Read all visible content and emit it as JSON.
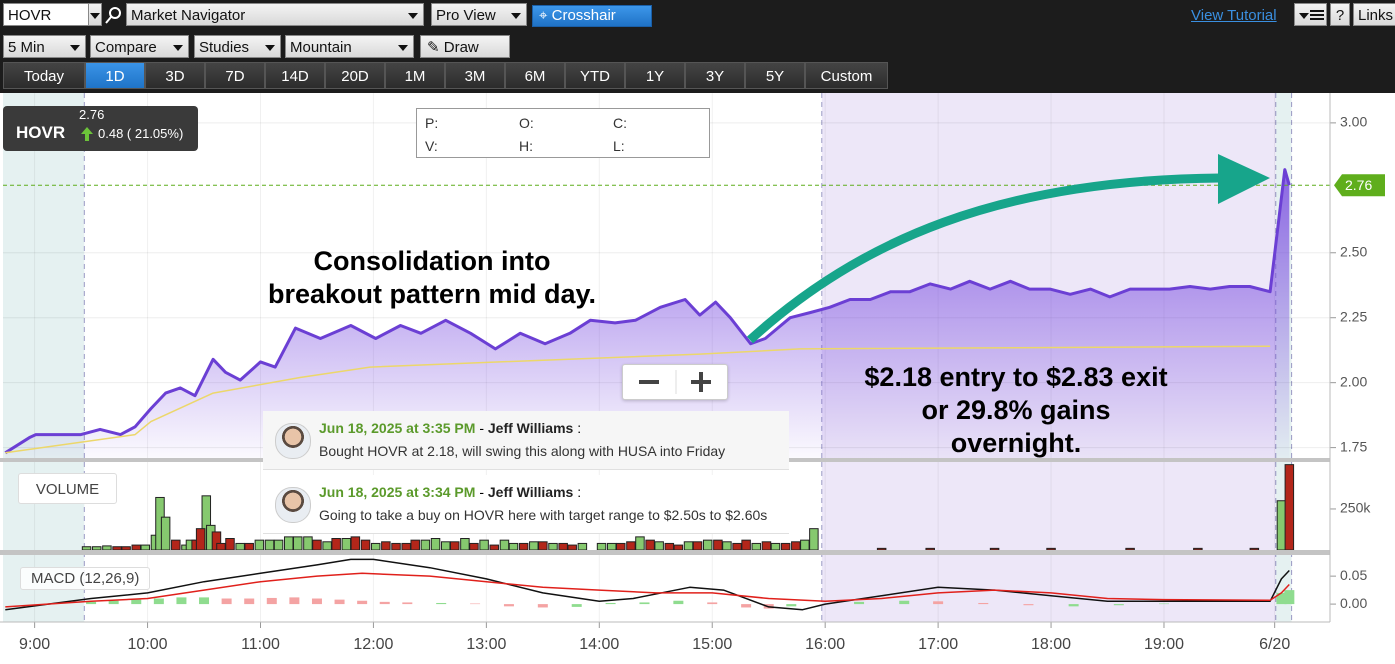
{
  "toolbar": {
    "symbol": "HOVR",
    "navigator": "Market Navigator",
    "view": "Pro View",
    "crosshair": "Crosshair",
    "tutorial": "View Tutorial",
    "links": "Links",
    "help": "?",
    "interval": "5 Min",
    "compare": "Compare",
    "studies": "Studies",
    "timezone": "Mountain",
    "draw": "Draw",
    "ranges": [
      "Today",
      "1D",
      "3D",
      "7D",
      "14D",
      "20D",
      "1M",
      "3M",
      "6M",
      "YTD",
      "1Y",
      "3Y",
      "5Y",
      "Custom"
    ],
    "selected_range": "1D"
  },
  "quote": {
    "symbol": "HOVR",
    "last": "2.76",
    "change": "0.48 ( 21.05%)"
  },
  "ohlc_labels": [
    "P:",
    "O:",
    "C:",
    "V:",
    "H:",
    "L:"
  ],
  "annotations": [
    {
      "lines": [
        "Consolidation into",
        "breakout pattern mid day."
      ]
    },
    {
      "lines": [
        "$2.18 entry to $2.83 exit",
        "or 29.8% gains",
        "overnight."
      ]
    }
  ],
  "comments": [
    {
      "date": "Jun 18, 2025 at 3:35 PM",
      "separator": "-",
      "author": "Jeff Williams",
      "colon": ":",
      "text": "Bought HOVR at 2.18, will swing this along with HUSA into Friday"
    },
    {
      "date": "Jun 18, 2025 at 3:34 PM",
      "separator": "-",
      "author": "Jeff Williams",
      "colon": ":",
      "text": "Going to take a buy on HOVR here with target range to $2.50s to $2.60s"
    }
  ],
  "panel_labels": {
    "volume": "VOLUME",
    "macd": "MACD (12,26,9)"
  },
  "chart_data": [
    {
      "type": "area",
      "xlim": [
        8.72,
        20.47
      ],
      "ylim": [
        1.71,
        3.115
      ],
      "grid": true,
      "yticks": [
        {
          "value": 1.75,
          "label": "1.75"
        },
        {
          "value": 2,
          "label": "2.00"
        },
        {
          "value": 2.25,
          "label": "2.25"
        },
        {
          "value": 2.5,
          "label": "2.50"
        },
        {
          "value": 3,
          "label": "3.00"
        }
      ],
      "reference_line": 2.76,
      "reference_color": "#5fae1c",
      "shaded": [
        {
          "xlim": [
            8.72,
            9.44
          ],
          "color": "#e5f1f1"
        },
        {
          "xlim": [
            15.97,
            19.99
          ],
          "color": "#ede7f8"
        },
        {
          "xlim": [
            19.99,
            20.13
          ],
          "color": "#e5f1f1"
        }
      ],
      "series": [
        {
          "color": "#6b3fd4",
          "area": true,
          "x": [
            8.74,
            8.96,
            9.01,
            9.41,
            9.58,
            9.76,
            9.89,
            10.03,
            10.16,
            10.29,
            10.42,
            10.58,
            10.69,
            10.82,
            11.0,
            11.13,
            11.31,
            11.53,
            11.8,
            12.02,
            12.24,
            12.42,
            12.64,
            12.86,
            13.08,
            13.3,
            13.52,
            13.74,
            13.92,
            14.14,
            14.32,
            14.54,
            14.76,
            14.89,
            15.03,
            15.16,
            15.34,
            15.47,
            15.69,
            15.87,
            16.04,
            16.22,
            16.4,
            16.58,
            16.75,
            16.93,
            17.11,
            17.28,
            17.46,
            17.64,
            17.81,
            17.99,
            18.17,
            18.35,
            18.52,
            18.7,
            18.88,
            19.05,
            19.23,
            19.41,
            19.58,
            19.76,
            19.94,
            20.07,
            20.11
          ],
          "values": [
            1.73,
            1.79,
            1.8,
            1.8,
            1.82,
            1.8,
            1.83,
            1.9,
            1.96,
            1.98,
            1.95,
            2.09,
            2.04,
            2.01,
            2.08,
            2.06,
            2.21,
            2.17,
            2.22,
            2.17,
            2.22,
            2.19,
            2.24,
            2.19,
            2.13,
            2.19,
            2.15,
            2.19,
            2.24,
            2.23,
            2.24,
            2.29,
            2.32,
            2.26,
            2.31,
            2.25,
            2.15,
            2.17,
            2.25,
            2.27,
            2.29,
            2.32,
            2.32,
            2.35,
            2.35,
            2.38,
            2.36,
            2.39,
            2.36,
            2.39,
            2.36,
            2.36,
            2.34,
            2.36,
            2.33,
            2.36,
            2.36,
            2.36,
            2.37,
            2.36,
            2.37,
            2.37,
            2.35,
            2.82,
            2.76
          ]
        },
        {
          "color": "#ecd76a",
          "area": false,
          "x": [
            8.74,
            9.89,
            10.03,
            10.58,
            11.35,
            11.97,
            13.12,
            14.89,
            15.78,
            19.94
          ],
          "values": [
            1.73,
            1.8,
            1.85,
            1.96,
            2.02,
            2.06,
            2.08,
            2.11,
            2.13,
            2.14
          ]
        }
      ]
    },
    {
      "type": "bar",
      "xlim": [
        8.72,
        20.47
      ],
      "ylim": [
        0,
        536000
      ],
      "yticks": [
        {
          "value": 250000,
          "label": "250k"
        }
      ],
      "series": [
        {
          "color": "#86c96f",
          "x": [
            9.46,
            9.55,
            9.64,
            9.98,
            10.07,
            10.11,
            10.16,
            10.34,
            10.38,
            10.52,
            10.56,
            10.82,
            10.99,
            11.08,
            11.16,
            11.25,
            11.33,
            11.42,
            11.59,
            11.76,
            12.02,
            12.46,
            12.55,
            12.64,
            12.81,
            12.98,
            13.16,
            13.24,
            13.42,
            13.59,
            13.85,
            14.02,
            14.11,
            14.36,
            14.53,
            14.79,
            14.96,
            15.13,
            15.39,
            15.56,
            15.82,
            15.9,
            20.04
          ],
          "values": [
            20000,
            20000,
            25000,
            30000,
            90000,
            320000,
            200000,
            30000,
            60000,
            330000,
            150000,
            40000,
            60000,
            60000,
            60000,
            80000,
            80000,
            80000,
            50000,
            70000,
            40000,
            60000,
            70000,
            50000,
            70000,
            60000,
            60000,
            40000,
            50000,
            40000,
            40000,
            40000,
            40000,
            80000,
            50000,
            50000,
            60000,
            50000,
            40000,
            40000,
            60000,
            130000,
            300000
          ]
        },
        {
          "color": "#b3261a",
          "x": [
            9.73,
            9.81,
            9.9,
            10.25,
            10.43,
            10.47,
            10.61,
            10.65,
            10.73,
            10.9,
            11.5,
            11.67,
            11.84,
            11.93,
            12.11,
            12.2,
            12.29,
            12.37,
            12.72,
            12.89,
            13.07,
            13.33,
            13.5,
            13.68,
            13.76,
            14.19,
            14.28,
            14.45,
            14.62,
            14.7,
            14.87,
            15.05,
            15.22,
            15.3,
            15.48,
            15.65,
            15.74,
            16.5,
            16.93,
            17.5,
            18.0,
            18.7,
            19.3,
            19.8,
            20.11
          ],
          "values": [
            20000,
            20000,
            30000,
            60000,
            60000,
            130000,
            110000,
            40000,
            70000,
            40000,
            60000,
            70000,
            80000,
            60000,
            50000,
            40000,
            40000,
            60000,
            50000,
            40000,
            30000,
            40000,
            50000,
            40000,
            30000,
            40000,
            50000,
            60000,
            40000,
            30000,
            50000,
            60000,
            40000,
            60000,
            50000,
            40000,
            50000,
            10000,
            10000,
            10000,
            10000,
            10000,
            10000,
            10000,
            520000
          ]
        }
      ]
    },
    {
      "type": "line",
      "xlim": [
        8.72,
        20.47
      ],
      "ylim": [
        -0.032,
        0.086
      ],
      "yticks": [
        {
          "value": 0,
          "label": "0.00"
        },
        0.05
      ],
      "xticks": [
        {
          "value": 9,
          "label": "9:00"
        },
        {
          "value": 10,
          "label": "10:00"
        },
        {
          "value": 11,
          "label": "11:00"
        },
        {
          "value": 12,
          "label": "12:00"
        },
        {
          "value": 13,
          "label": "13:00"
        },
        {
          "value": 14,
          "label": "14:00"
        },
        {
          "value": 15,
          "label": "15:00"
        },
        {
          "value": 16,
          "label": "16:00"
        },
        {
          "value": 17,
          "label": "17:00"
        },
        {
          "value": 18,
          "label": "18:00"
        },
        {
          "value": 19,
          "label": "19:00"
        },
        {
          "value": 19.98,
          "label": "6/20"
        }
      ],
      "series": [
        {
          "type": "bar",
          "x": [
            9.5,
            9.7,
            9.9,
            10.1,
            10.3,
            10.5,
            10.7,
            10.9,
            11.1,
            11.3,
            11.5,
            11.7,
            11.9,
            12.1,
            12.3,
            12.6,
            12.9,
            13.2,
            13.5,
            13.8,
            14.1,
            14.4,
            14.7,
            15.0,
            15.3,
            15.5,
            15.7,
            16.3,
            16.7,
            17.0,
            17.4,
            17.8,
            18.2,
            18.6,
            19.0,
            20.04,
            20.11
          ],
          "values": [
            0.004,
            0.006,
            0.008,
            0.01,
            0.012,
            0.012,
            0.01,
            0.01,
            0.011,
            0.012,
            0.01,
            0.008,
            0.006,
            0.004,
            0.003,
            0.002,
            0.001,
            -0.004,
            -0.006,
            -0.005,
            0.002,
            0.003,
            0.006,
            0.003,
            -0.006,
            -0.008,
            -0.004,
            0.004,
            0.006,
            0.005,
            0.002,
            -0.002,
            -0.004,
            -0.002,
            0.001,
            0.02,
            0.025
          ],
          "colors": [
            "#8fdc8f",
            "#8fdc8f",
            "#8fdc8f",
            "#8fdc8f",
            "#8fdc8f",
            "#8fdc8f",
            "#f4a3a3",
            "#f4a3a3",
            "#f4a3a3",
            "#f4a3a3",
            "#f4a3a3",
            "#f4a3a3",
            "#f4a3a3",
            "#f4a3a3",
            "#f4a3a3",
            "#8fdc8f",
            "#f4a3a3",
            "#f4a3a3",
            "#f4a3a3",
            "#8fdc8f",
            "#8fdc8f",
            "#8fdc8f",
            "#8fdc8f",
            "#f4a3a3",
            "#f4a3a3",
            "#f4a3a3",
            "#8fdc8f",
            "#8fdc8f",
            "#8fdc8f",
            "#f4a3a3",
            "#f4a3a3",
            "#f4a3a3",
            "#8fdc8f",
            "#8fdc8f",
            "#8fdc8f",
            "#8fdc8f",
            "#8fdc8f"
          ]
        },
        {
          "color": "#111111",
          "x": [
            8.74,
            9.5,
            10.0,
            10.5,
            11.0,
            11.5,
            11.8,
            12.0,
            12.5,
            13.0,
            13.5,
            14.0,
            14.3,
            14.8,
            15.1,
            15.5,
            15.8,
            16.0,
            16.5,
            17.0,
            17.5,
            18.0,
            18.5,
            19.0,
            19.5,
            19.94,
            20.04,
            20.11
          ],
          "values": [
            -0.01,
            0.01,
            0.02,
            0.04,
            0.055,
            0.07,
            0.08,
            0.08,
            0.065,
            0.045,
            0.02,
            0.005,
            0.01,
            0.03,
            0.025,
            -0.005,
            -0.01,
            0.0,
            0.015,
            0.03,
            0.025,
            0.015,
            0.005,
            0.005,
            0.005,
            0.005,
            0.045,
            0.06
          ]
        },
        {
          "color": "#e0201b",
          "x": [
            8.74,
            9.5,
            10.0,
            10.5,
            11.0,
            11.5,
            11.9,
            12.5,
            13.0,
            13.5,
            14.0,
            14.5,
            15.0,
            15.5,
            16.0,
            16.5,
            17.0,
            17.5,
            18.0,
            18.5,
            19.0,
            19.94,
            20.04,
            20.11
          ],
          "values": [
            -0.005,
            0.005,
            0.01,
            0.025,
            0.04,
            0.05,
            0.055,
            0.05,
            0.04,
            0.03,
            0.025,
            0.02,
            0.02,
            0.01,
            0.005,
            0.01,
            0.02,
            0.025,
            0.02,
            0.01,
            0.008,
            0.007,
            0.02,
            0.035
          ]
        }
      ]
    }
  ]
}
